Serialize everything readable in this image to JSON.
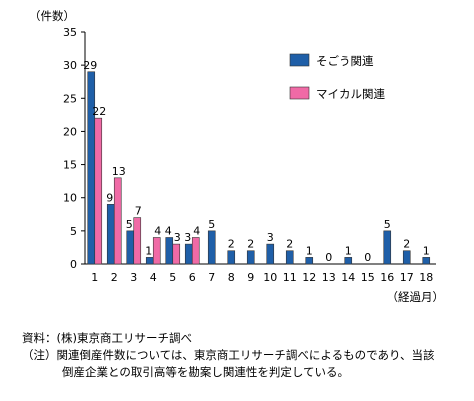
{
  "chart_data": {
    "type": "bar",
    "ylabel": "（件数）",
    "xlabel": "（経過月）",
    "ylim": [
      0,
      35
    ],
    "yticks": [
      "0",
      "5",
      "10",
      "15",
      "20",
      "25",
      "30",
      "35"
    ],
    "categories": [
      "1",
      "2",
      "3",
      "4",
      "5",
      "6",
      "7",
      "8",
      "9",
      "10",
      "11",
      "12",
      "13",
      "14",
      "15",
      "16",
      "17",
      "18"
    ],
    "series": [
      {
        "name": "そごう関連",
        "color": "#1f5fa8",
        "values": [
          29,
          9,
          5,
          1,
          4,
          3,
          5,
          2,
          2,
          3,
          2,
          1,
          0,
          1,
          0,
          5,
          2,
          1
        ]
      },
      {
        "name": "マイカル関連",
        "color": "#f06aa6",
        "values": [
          22,
          13,
          7,
          4,
          3,
          4,
          null,
          null,
          null,
          null,
          null,
          null,
          null,
          null,
          null,
          null,
          null,
          null
        ]
      }
    ],
    "legend_position": "top-right",
    "grid": false
  },
  "notes": {
    "source": "資料：(株)東京商工リサーチ調べ",
    "note_line1": "（注）関連倒産件数については、東京商工リサーチ調べによるものであり、当該",
    "note_line2": "倒産企業との取引高等を勘案し関連性を判定している。"
  }
}
